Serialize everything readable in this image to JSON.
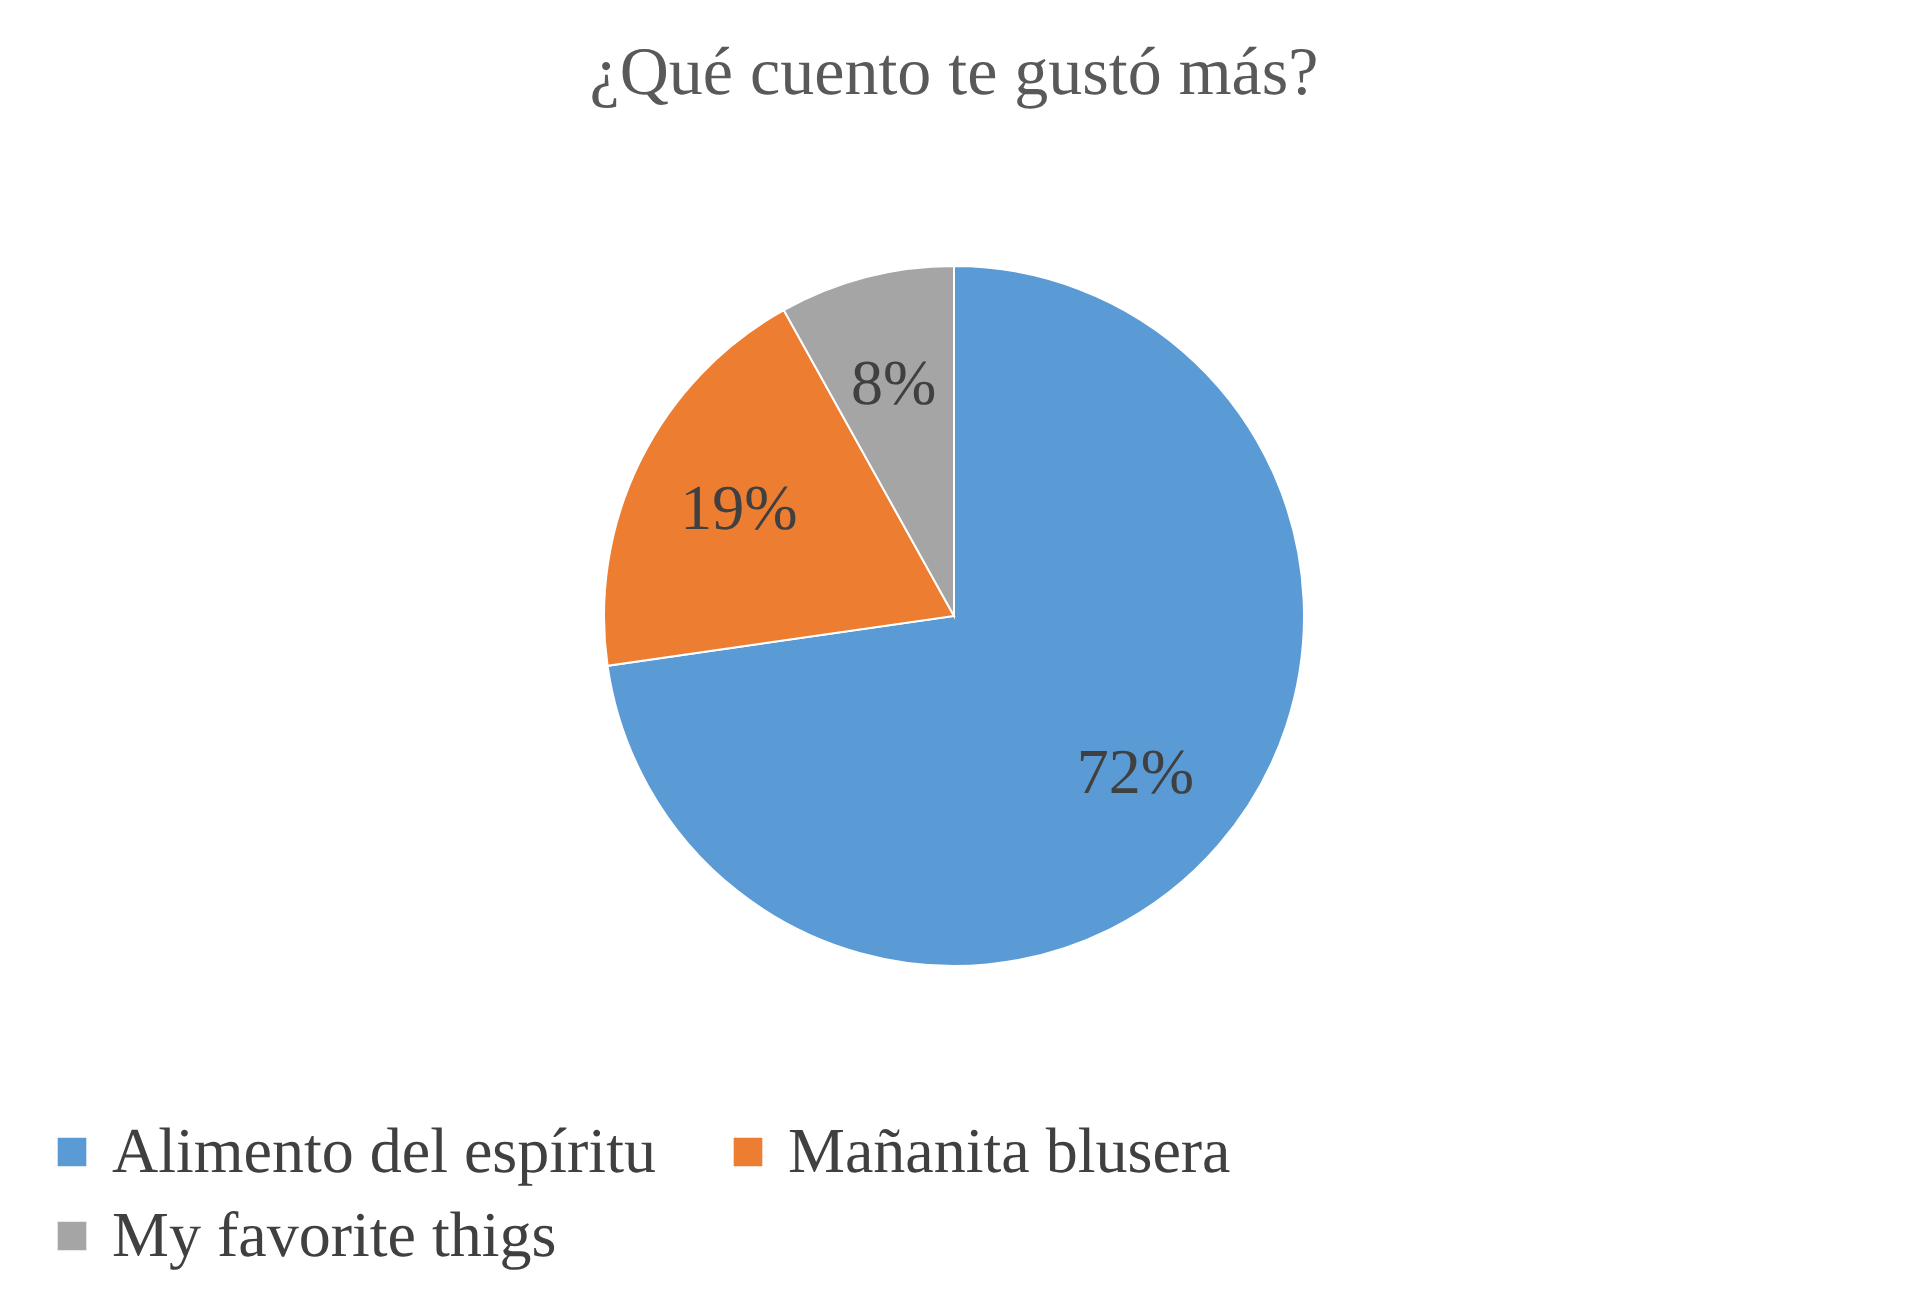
{
  "chart_data": {
    "type": "pie",
    "title": "¿Qué cuento te gustó más?",
    "categories": [
      "Alimento del espíritu",
      "Mañanita blusera",
      "My favorite thigs"
    ],
    "values": [
      72,
      19,
      8
    ],
    "colors": [
      "#5b9bd5",
      "#ed7d31",
      "#a5a5a5"
    ],
    "value_labels": [
      "72%",
      "19%",
      "8%"
    ],
    "legend": "bottom"
  }
}
